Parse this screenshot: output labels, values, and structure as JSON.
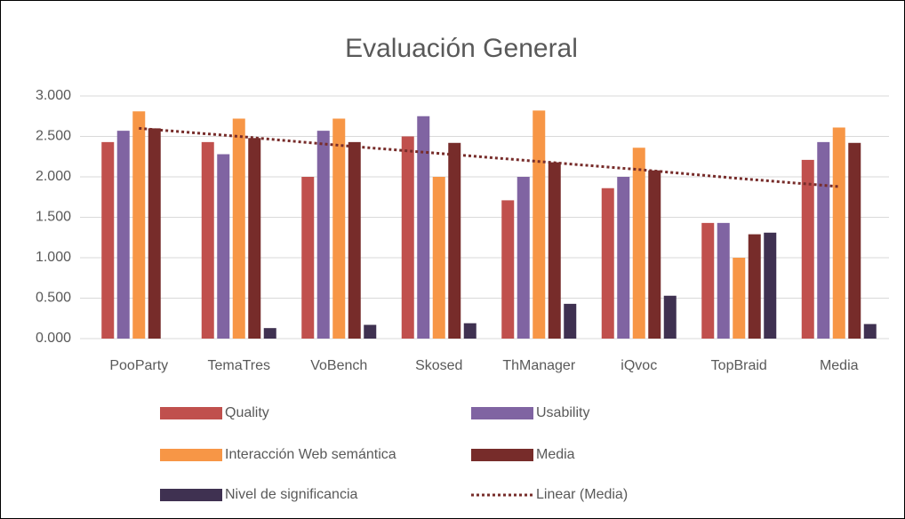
{
  "chart_data": {
    "type": "bar",
    "title": "Evaluación General",
    "categories": [
      "PooParty",
      "TemaTres",
      "VoBench",
      "Skosed",
      "ThManager",
      "iQvoc",
      "TopBraid",
      "Media"
    ],
    "series": [
      {
        "name": "Quality",
        "color": "#c0504d",
        "values": [
          2.43,
          2.43,
          2.0,
          2.5,
          1.71,
          1.86,
          1.43,
          2.21
        ]
      },
      {
        "name": "Usability",
        "color": "#8064a2",
        "values": [
          2.57,
          2.28,
          2.57,
          2.75,
          2.0,
          2.0,
          1.43,
          2.43
        ]
      },
      {
        "name": "Interacción Web semántica",
        "color": "#f79646",
        "values": [
          2.81,
          2.72,
          2.72,
          2.0,
          2.82,
          2.36,
          1.0,
          2.61
        ]
      },
      {
        "name": "Media",
        "color": "#772c2a",
        "values": [
          2.6,
          2.48,
          2.43,
          2.42,
          2.18,
          2.08,
          1.29,
          2.42
        ]
      },
      {
        "name": "Nivel de significancia",
        "color": "#3f3151",
        "values": [
          0,
          0.13,
          0.17,
          0.19,
          0.43,
          0.53,
          1.31,
          0.18
        ]
      }
    ],
    "trendline": {
      "name": "Linear (Media)",
      "color": "#772c2a",
      "values": [
        2.6,
        2.5,
        2.39,
        2.29,
        2.19,
        2.09,
        1.98,
        1.88
      ]
    },
    "ylim": [
      0,
      3
    ],
    "yticks": [
      {
        "value": 0,
        "label": "0.000"
      },
      {
        "value": 0.5,
        "label": "0.500"
      },
      {
        "value": 1,
        "label": "1.000"
      },
      {
        "value": 1.5,
        "label": "1.500"
      },
      {
        "value": 2,
        "label": "2.000"
      },
      {
        "value": 2.5,
        "label": "2.500"
      },
      {
        "value": 3,
        "label": "3.000"
      }
    ],
    "grid": true
  }
}
